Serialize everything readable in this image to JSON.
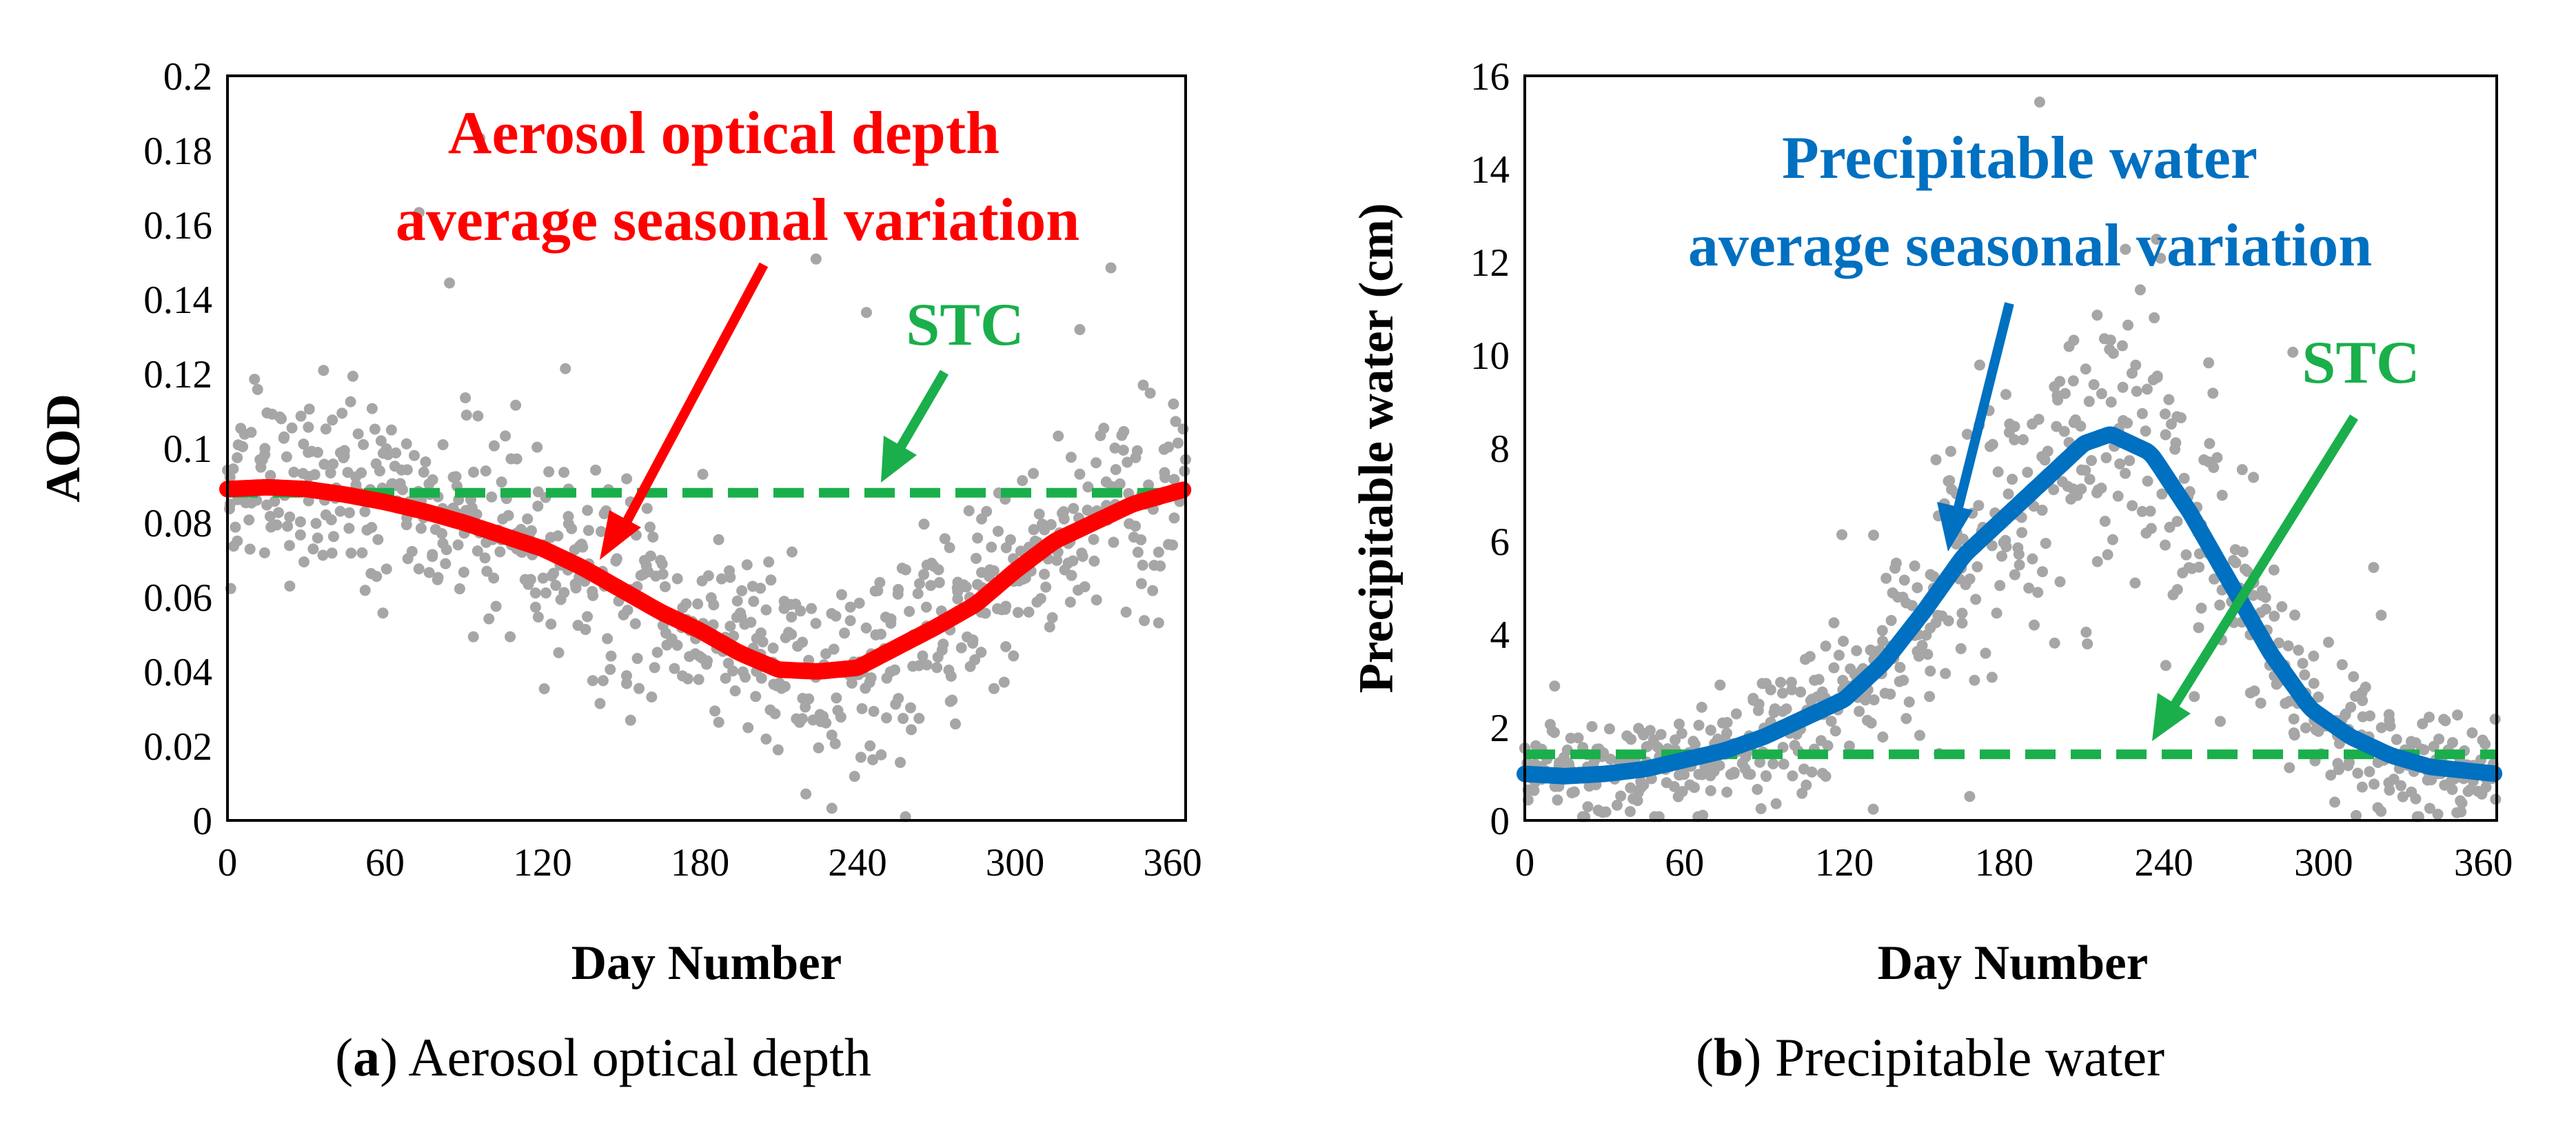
{
  "chart_data": [
    {
      "type": "scatter",
      "panel": "a",
      "caption_letter": "a",
      "caption_text": "Aerosol optical depth",
      "xlabel": "Day Number",
      "ylabel": "AOD",
      "xlim": [
        0,
        365
      ],
      "ylim": [
        0,
        0.2
      ],
      "xticks": [
        0,
        60,
        120,
        180,
        240,
        300,
        360
      ],
      "yticks": [
        0,
        0.02,
        0.04,
        0.06,
        0.08,
        0.1,
        0.12,
        0.14,
        0.16,
        0.18,
        0.2
      ],
      "ytick_labels": [
        "0",
        "0.02",
        "0.04",
        "0.06",
        "0.08",
        "0.1",
        "0.12",
        "0.14",
        "0.16",
        "0.18",
        "0.2"
      ],
      "annotation_line1": "Aerosol optical depth",
      "annotation_line2": "average seasonal variation",
      "stc_label": "STC",
      "stc_value": 0.088,
      "colors": {
        "scatter": "#a6a6a6",
        "average": "#ff0000",
        "stc": "#1aaf4b",
        "stc_arrow": "#1aaf4b"
      },
      "average_curve": {
        "x": [
          0,
          15,
          30,
          45,
          60,
          75,
          90,
          105,
          120,
          135,
          150,
          165,
          180,
          195,
          210,
          225,
          240,
          255,
          270,
          285,
          300,
          315,
          330,
          345,
          365
        ],
        "y": [
          0.089,
          0.0895,
          0.089,
          0.0875,
          0.0855,
          0.083,
          0.08,
          0.0765,
          0.073,
          0.068,
          0.062,
          0.056,
          0.051,
          0.045,
          0.0405,
          0.04,
          0.041,
          0.0465,
          0.052,
          0.058,
          0.067,
          0.075,
          0.08,
          0.085,
          0.089
        ]
      },
      "scatter_noise": 0.013
    },
    {
      "type": "scatter",
      "panel": "b",
      "caption_letter": "b",
      "caption_text": "Precipitable water",
      "xlabel": "Day Number",
      "ylabel": "Precipitable  water (cm)",
      "xlim": [
        0,
        365
      ],
      "ylim": [
        0,
        16
      ],
      "xticks": [
        0,
        60,
        120,
        180,
        240,
        300,
        360
      ],
      "yticks": [
        0,
        2,
        4,
        6,
        8,
        10,
        12,
        14,
        16
      ],
      "ytick_labels": [
        "0",
        "2",
        "4",
        "6",
        "8",
        "10",
        "12",
        "14",
        "16"
      ],
      "annotation_line1": "Precipitable water",
      "annotation_line2": "average seasonal variation",
      "stc_label": "STC",
      "stc_value": 1.42,
      "colors": {
        "scatter": "#a6a6a6",
        "average": "#0070c0",
        "stc": "#1aaf4b",
        "stc_arrow": "#1aaf4b"
      },
      "average_curve": {
        "x": [
          0,
          15,
          30,
          45,
          60,
          75,
          90,
          105,
          120,
          135,
          150,
          165,
          180,
          195,
          210,
          220,
          235,
          250,
          265,
          280,
          295,
          310,
          325,
          340,
          365
        ],
        "y": [
          1.0,
          0.95,
          1.0,
          1.1,
          1.3,
          1.5,
          1.8,
          2.2,
          2.6,
          3.4,
          4.5,
          5.7,
          6.5,
          7.3,
          8.1,
          8.3,
          7.9,
          6.6,
          5.1,
          3.6,
          2.4,
          1.8,
          1.4,
          1.15,
          1.0
        ]
      },
      "scatter_noise": 0.9
    }
  ]
}
